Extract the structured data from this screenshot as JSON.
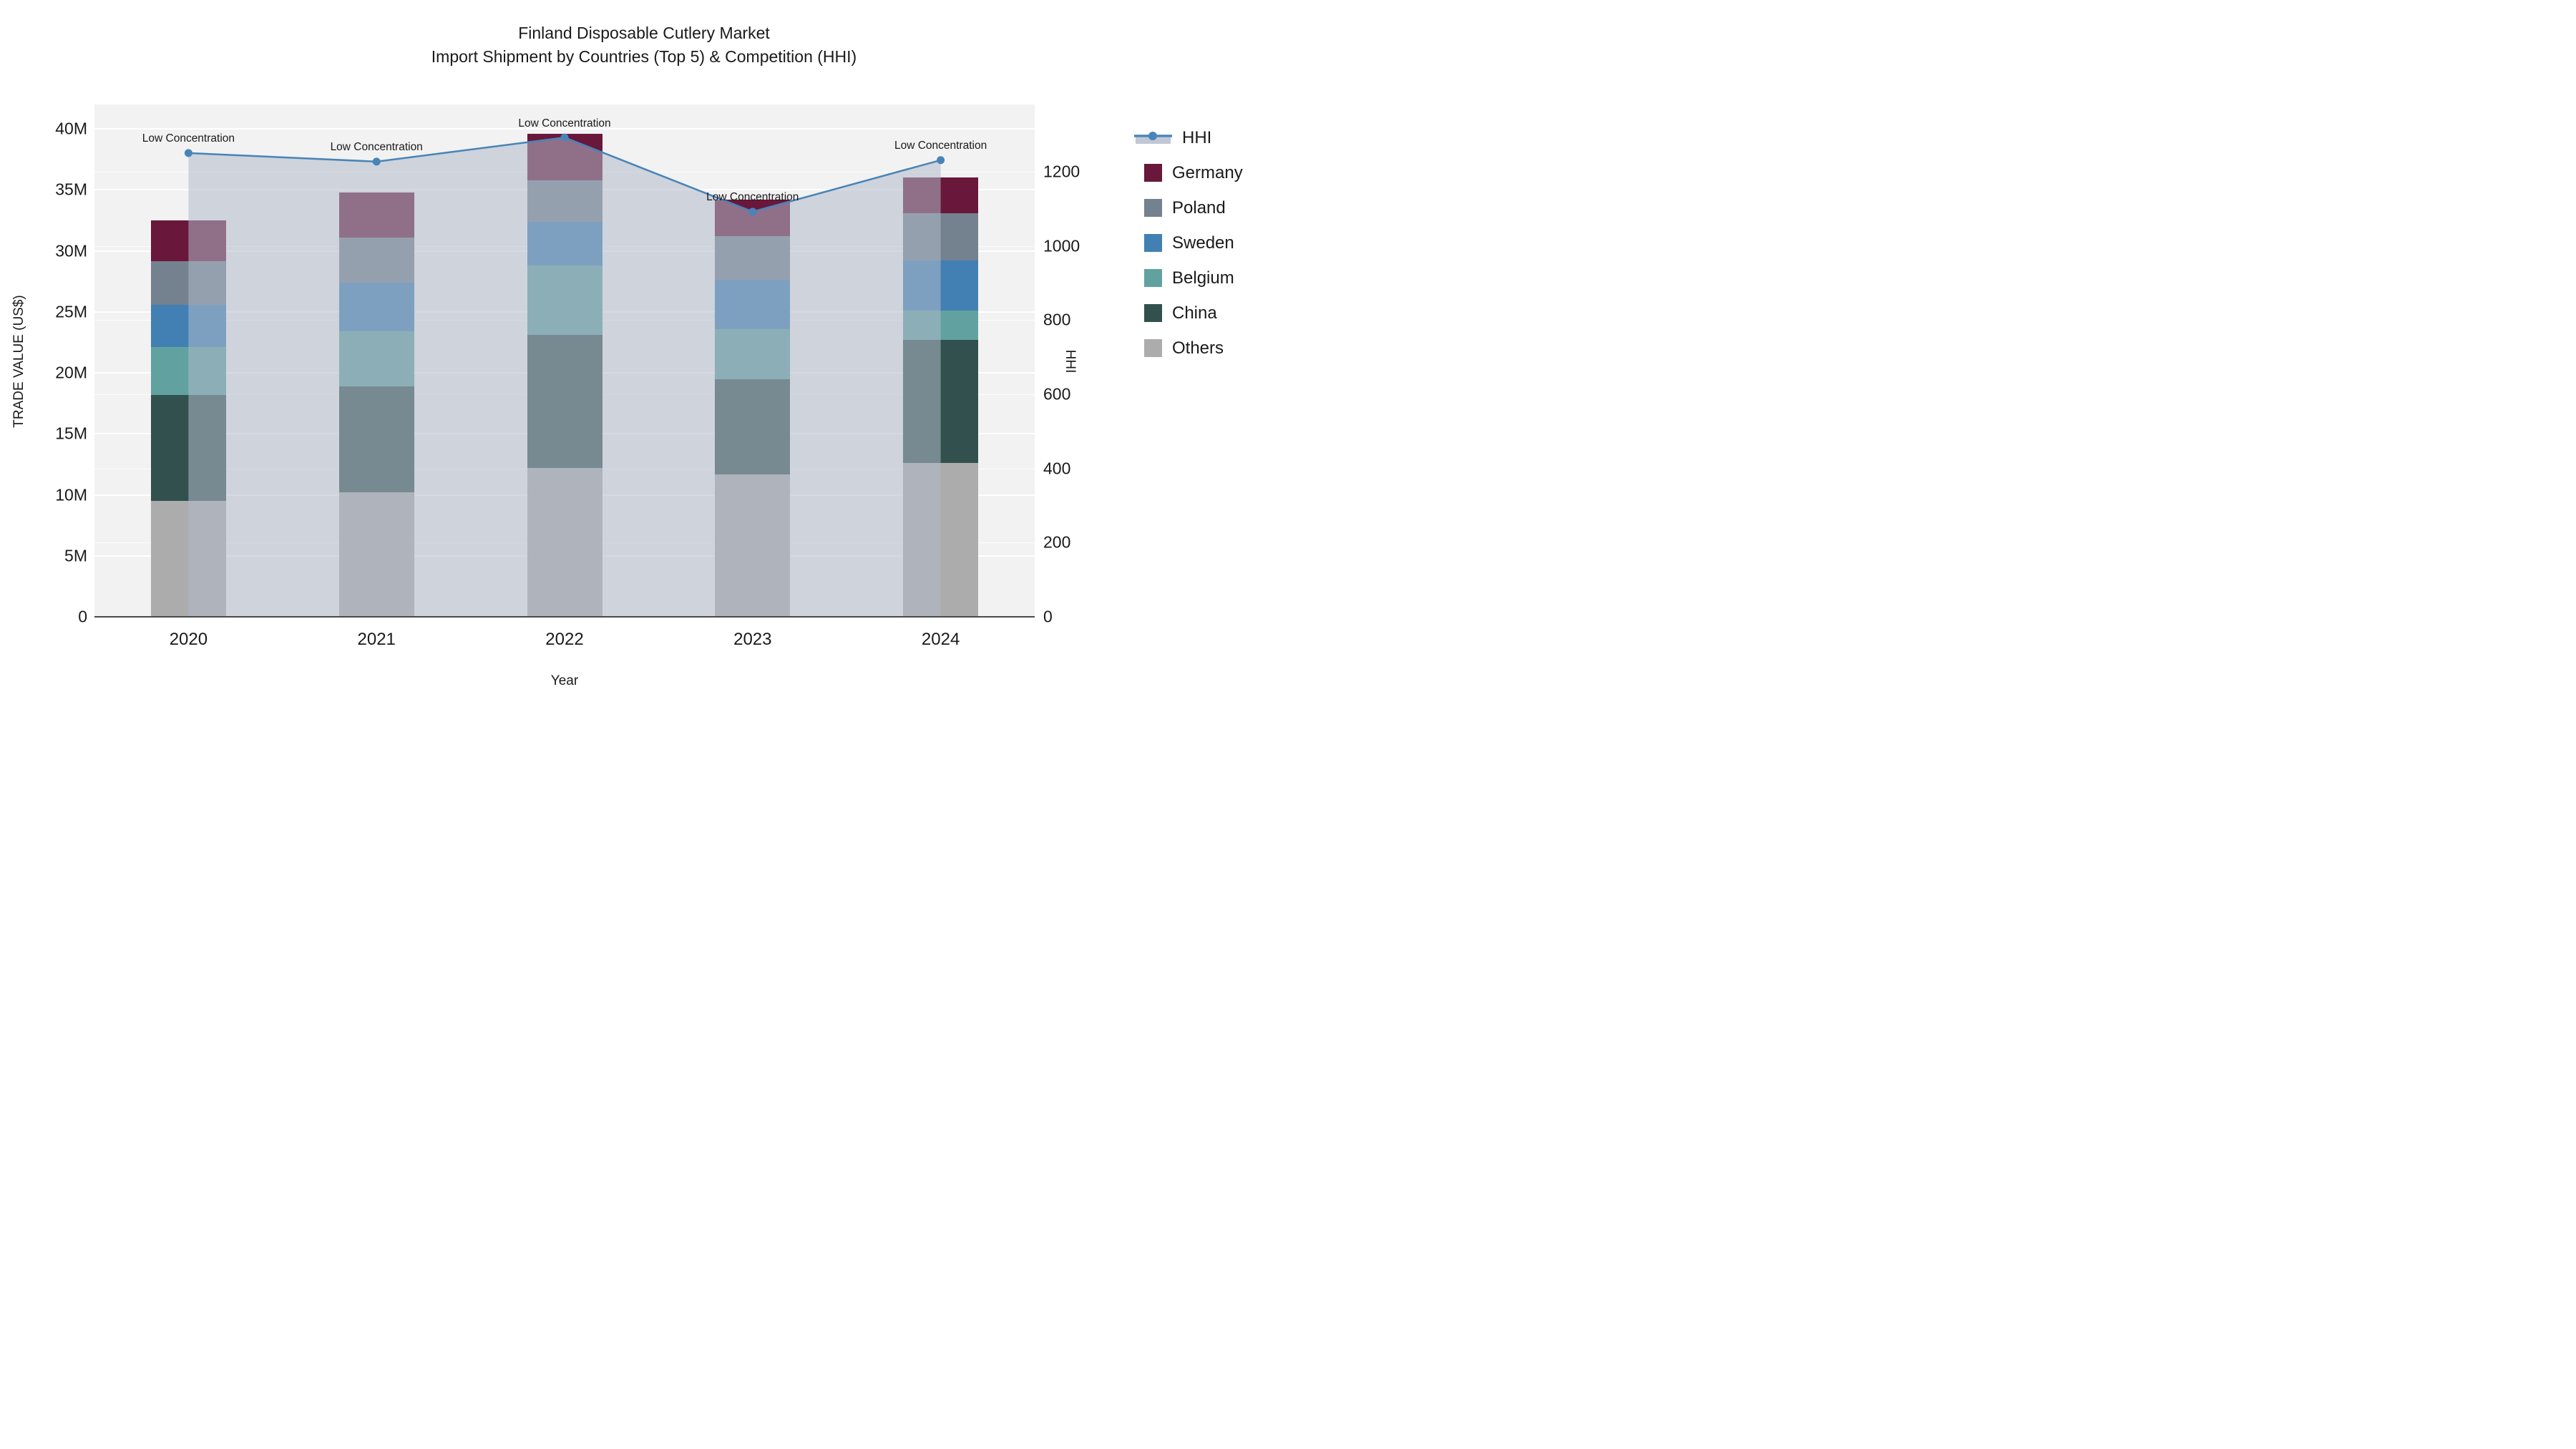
{
  "title": {
    "line1": "Finland Disposable Cutlery Market",
    "line2": "Import Shipment by Countries (Top 5) & Competition (HHI)"
  },
  "axes": {
    "x_title": "Year",
    "y_left_title": "TRADE VALUE (US$)",
    "y_right_title": "HHI"
  },
  "annotation_text": "Low Concentration",
  "legend_items": [
    "HHI",
    "Germany",
    "Poland",
    "Sweden",
    "Belgium",
    "China",
    "Others"
  ],
  "colors": {
    "hhi_line": "#4884B8",
    "hhi_fill": "rgba(176,185,202,0.55)",
    "germany": "#69173A",
    "poland": "#74818F",
    "sweden": "#4280B3",
    "belgium": "#61A2A0",
    "china": "#32514E",
    "others": "#ACACAC",
    "plot_bg": "#F2F2F2"
  },
  "chart_data": {
    "type": "bar",
    "subtype": "stacked-bars-with-line",
    "title": "Finland Disposable Cutlery Market — Import Shipment by Countries (Top 5) & Competition (HHI)",
    "categories": [
      "2020",
      "2021",
      "2022",
      "2023",
      "2024"
    ],
    "xlabel": "Year",
    "ylabel_left": "TRADE VALUE (US$)",
    "ylabel_right": "HHI",
    "stack_order_bottom_to_top": [
      "Others",
      "China",
      "Belgium",
      "Sweden",
      "Poland",
      "Germany"
    ],
    "series": [
      {
        "name": "Others",
        "axis": "left",
        "unit": "M US$",
        "values": [
          9.5,
          10.2,
          12.2,
          11.7,
          12.6
        ]
      },
      {
        "name": "China",
        "axis": "left",
        "unit": "M US$",
        "values": [
          8.7,
          8.7,
          10.9,
          7.8,
          10.1
        ]
      },
      {
        "name": "Belgium",
        "axis": "left",
        "unit": "M US$",
        "values": [
          3.9,
          4.5,
          5.7,
          4.1,
          2.4
        ]
      },
      {
        "name": "Sweden",
        "axis": "left",
        "unit": "M US$",
        "values": [
          3.5,
          4.0,
          3.6,
          4.0,
          4.1
        ]
      },
      {
        "name": "Poland",
        "axis": "left",
        "unit": "M US$",
        "values": [
          3.55,
          3.7,
          3.4,
          3.6,
          3.9
        ]
      },
      {
        "name": "Germany",
        "axis": "left",
        "unit": "M US$",
        "values": [
          3.35,
          3.7,
          3.8,
          3.0,
          2.9
        ]
      },
      {
        "name": "HHI",
        "axis": "right",
        "unit": "index",
        "values": [
          1250,
          1227,
          1292,
          1092,
          1231
        ]
      }
    ],
    "bar_totals_musd": [
      32.5,
      34.8,
      39.6,
      34.2,
      36.0
    ],
    "annotations": [
      "Low Concentration",
      "Low Concentration",
      "Low Concentration",
      "Low Concentration",
      "Low Concentration"
    ],
    "y_left": {
      "range_musd": [
        0,
        42
      ],
      "tick_values_musd": [
        0,
        5,
        10,
        15,
        20,
        25,
        30,
        35,
        40
      ],
      "tick_labels": [
        "0",
        "5M",
        "10M",
        "15M",
        "20M",
        "25M",
        "30M",
        "35M",
        "40M"
      ]
    },
    "y_right": {
      "range": [
        0,
        1381
      ],
      "tick_values": [
        0,
        200,
        400,
        600,
        800,
        1000,
        1200
      ],
      "tick_labels": [
        "0",
        "200",
        "400",
        "600",
        "800",
        "1000",
        "1200"
      ]
    },
    "grid": true,
    "legend_position": "right",
    "hhi_area_fill": "area under HHI line filled translucent gray-blue from first to last category"
  }
}
